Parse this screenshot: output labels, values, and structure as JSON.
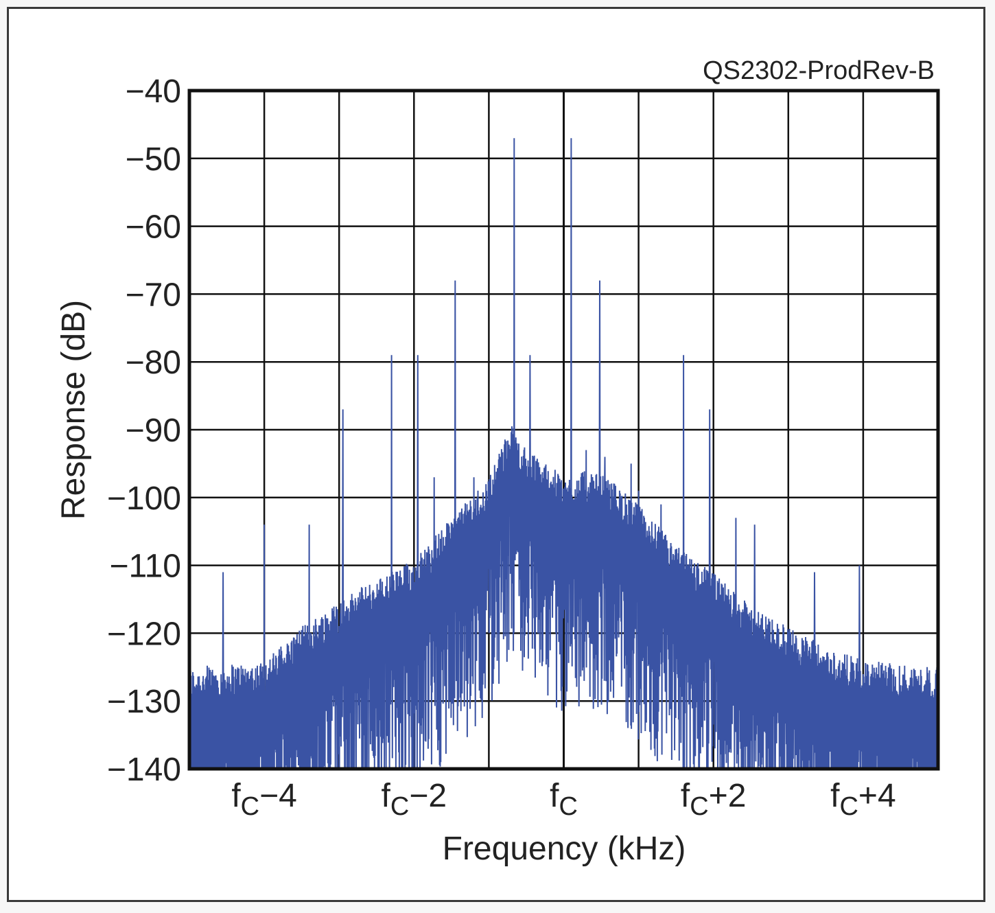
{
  "chart_data": {
    "type": "line",
    "corner_label": "QS2302-ProdRev-B",
    "xlabel": "Frequency (kHz)",
    "ylabel": "Response (dB)",
    "xlim": [
      -5,
      5
    ],
    "ylim": [
      -140,
      -40
    ],
    "yticks": [
      -40,
      -50,
      -60,
      -70,
      -80,
      -90,
      -100,
      -110,
      -120,
      -130,
      -140
    ],
    "ytick_labels": [
      "−40",
      "−50",
      "−60",
      "−70",
      "−80",
      "−90",
      "−100",
      "−110",
      "−120",
      "−130",
      "−140"
    ],
    "xticks": [
      -4,
      -2,
      0,
      2,
      4
    ],
    "xtick_labels": [
      {
        "base": "f",
        "sub": "C",
        "suffix": "−4"
      },
      {
        "base": "f",
        "sub": "C",
        "suffix": "−2"
      },
      {
        "base": "f",
        "sub": "C",
        "suffix": ""
      },
      {
        "base": "f",
        "sub": "C",
        "suffix": "+2"
      },
      {
        "base": "f",
        "sub": "C",
        "suffix": "+4"
      }
    ],
    "grid": true,
    "line_color": "#3a53a4",
    "series": [
      {
        "values_note_free": true,
        "envelope": {
          "x": [
            -5.0,
            -4.0,
            -3.5,
            -3.0,
            -2.5,
            -2.0,
            -1.5,
            -1.0,
            -0.7,
            -0.5,
            -0.2,
            0.0,
            0.3,
            0.6,
            1.0,
            1.5,
            2.0,
            2.5,
            3.0,
            3.5,
            4.0,
            5.0
          ],
          "y": [
            -134,
            -133,
            -128,
            -124,
            -121,
            -118,
            -112,
            -106,
            -98,
            -102,
            -104,
            -106,
            -105,
            -106,
            -110,
            -116,
            -120,
            -125,
            -128,
            -131,
            -133,
            -134
          ]
        },
        "spurs": {
          "x": [
            -4.55,
            -4.0,
            -3.4,
            -2.95,
            -2.3,
            -1.95,
            -1.73,
            -1.45,
            -1.2,
            -1.0,
            -0.66,
            -0.45,
            -0.35,
            -0.1,
            0.1,
            0.3,
            0.48,
            0.55,
            0.9,
            1.0,
            1.3,
            1.6,
            1.95,
            2.3,
            2.55,
            3.35,
            3.95,
            4.45,
            4.95,
            5.0
          ],
          "y": [
            -111,
            -104,
            -104,
            -87,
            -79,
            -79,
            -97,
            -68,
            -97,
            -103,
            -47,
            -79,
            -101,
            -108,
            -47,
            -93,
            -68,
            -94,
            -95,
            -99,
            -101,
            -79,
            -87,
            -103,
            -104,
            -111,
            -110,
            -132,
            -132,
            -128
          ]
        }
      }
    ]
  }
}
